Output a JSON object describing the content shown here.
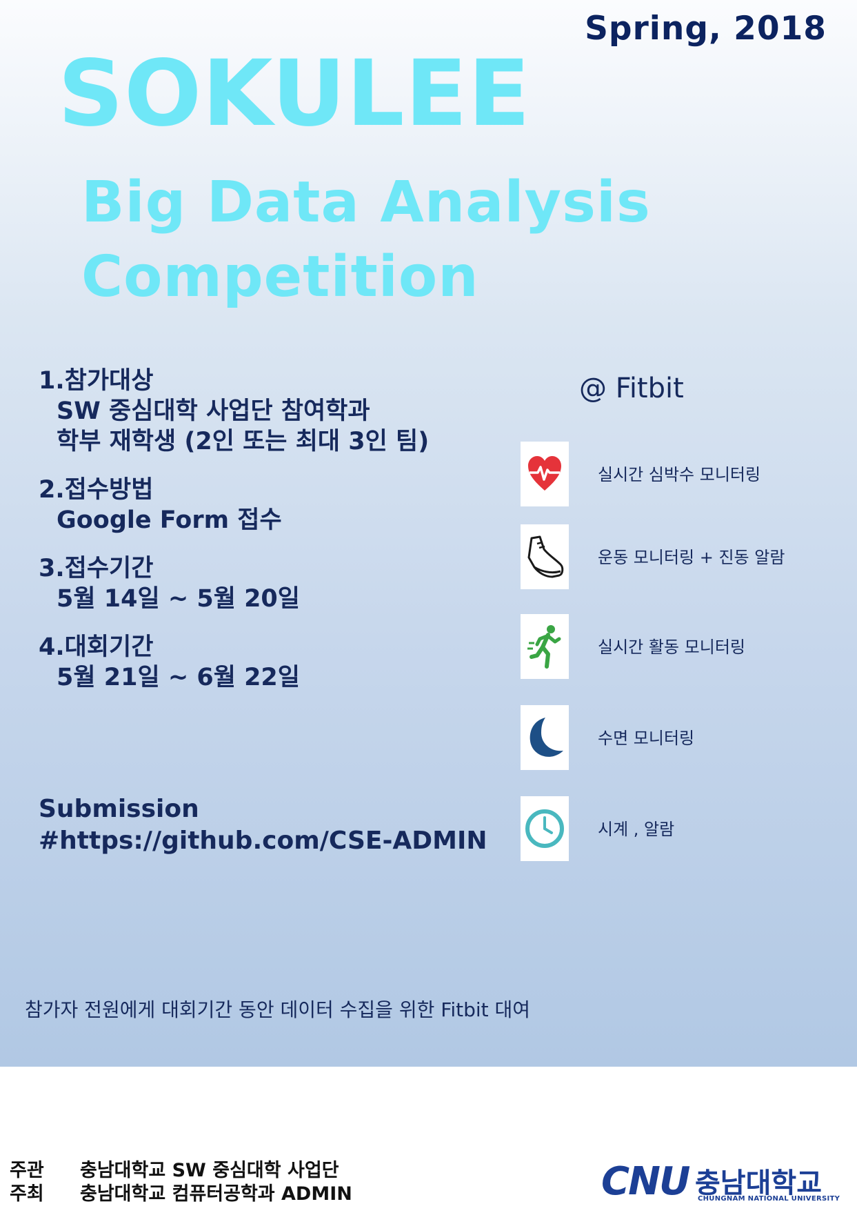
{
  "poster": {
    "season": "Spring, 2018",
    "title_main": "SOKULEE",
    "title_sub_line1": "Big Data Analysis",
    "title_sub_line2": "Competition",
    "sections": [
      {
        "title": "1.참가대상",
        "lines": [
          "SW 중심대학 사업단 참여학과",
          "학부 재학생 (2인 또는 최대 3인 팀)"
        ]
      },
      {
        "title": "2.접수방법",
        "lines": [
          "Google Form 접수"
        ]
      },
      {
        "title": "3.접수기간",
        "lines": [
          "5월 14일 ~ 5월 20일"
        ]
      },
      {
        "title": "4.대회기간",
        "lines": [
          "5월 21일 ~ 6월 22일"
        ]
      }
    ],
    "submission_label": "Submission",
    "submission_link": "#https://github.com/CSE-ADMIN",
    "fitbit_heading": "@ Fitbit",
    "features": [
      {
        "icon": "heart-rate-icon",
        "label": "실시간 심박수 모니터링",
        "color": "#e5333a"
      },
      {
        "icon": "running-shoe-icon",
        "label": "운동 모니터링 + 진동 알람",
        "color": "#1a1a1a"
      },
      {
        "icon": "running-person-icon",
        "label": "실시간 활동 모니터링",
        "color": "#3aa544"
      },
      {
        "icon": "moon-icon",
        "label": "수면 모니터링",
        "color": "#1d4f86"
      },
      {
        "icon": "clock-icon",
        "label": "시계 , 알람",
        "color": "#49b8bf"
      }
    ],
    "notice": "참가자 전원에게 대회기간 동안 데이터 수집을 위한 Fitbit 대여"
  },
  "footer": {
    "organizer_key": "주관",
    "organizer_value": "충남대학교 SW 중심대학 사업단",
    "host_key": "주최",
    "host_value": "충남대학교 컴퓨터공학과 ADMIN",
    "logo_cnu": "CNU",
    "logo_korean": "충남대학교",
    "logo_english": "CHUNGNAM NATIONAL UNIVERSITY"
  },
  "colors": {
    "title": "#6fe7f7",
    "text": "#16295c",
    "logo": "#1c3f95"
  }
}
